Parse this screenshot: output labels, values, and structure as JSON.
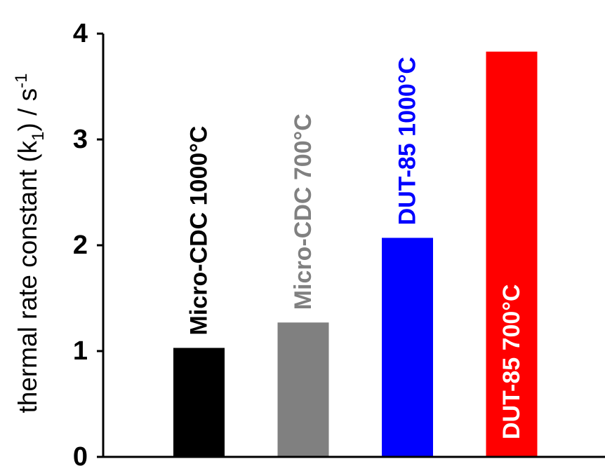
{
  "chart_data": {
    "type": "bar",
    "title": "",
    "xlabel": "",
    "ylabel": {
      "prefix": "thermal  rate constant  (k",
      "subscript": "1",
      "middle": ") / s",
      "superscript": "-1"
    },
    "ylim": [
      0,
      4
    ],
    "yticks": [
      "0",
      "1",
      "2",
      "3",
      "4"
    ],
    "grid": false,
    "legend": "none",
    "categories": [
      "Micro-CDC 1000°C",
      "Micro-CDC 700°C",
      "DUT-85 1000°C",
      "DUT-85 700°C"
    ],
    "values": [
      1.03,
      1.27,
      2.07,
      3.83
    ],
    "bar_colors": [
      "#000000",
      "#808080",
      "#0000ff",
      "#ff0000"
    ],
    "label_colors": [
      "#000000",
      "#808080",
      "#0000ff",
      "#ffffff"
    ]
  }
}
